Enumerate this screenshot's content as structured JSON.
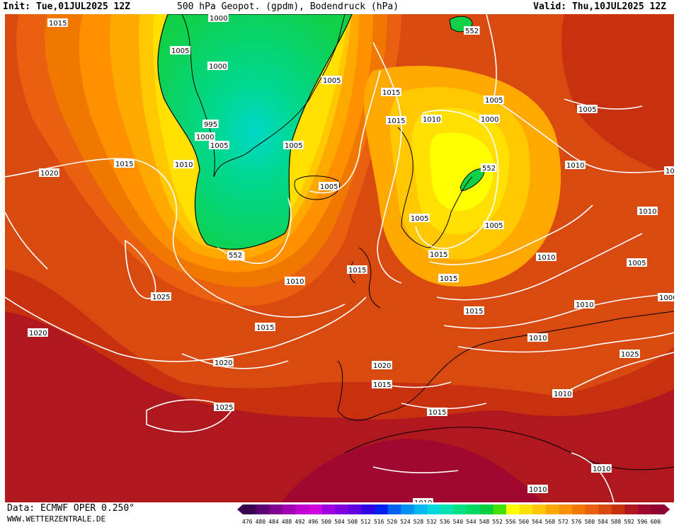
{
  "header": {
    "init": "Init: Tue,01JUL2025 12Z",
    "title": "500 hPa Geopot. (gpdm), Bodendruck (hPa)",
    "valid": "Valid: Thu,10JUL2025 12Z"
  },
  "footer": {
    "data_source": "Data: ECMWF OPER 0.250°",
    "website": "WWW.WETTERZENTRALE.DE"
  },
  "scale": {
    "values": [
      "476",
      "480",
      "484",
      "488",
      "492",
      "496",
      "500",
      "504",
      "508",
      "512",
      "516",
      "520",
      "524",
      "528",
      "532",
      "536",
      "540",
      "544",
      "548",
      "552",
      "556",
      "560",
      "564",
      "568",
      "572",
      "576",
      "580",
      "584",
      "588",
      "592",
      "596",
      "600"
    ],
    "colors": [
      "#3a0050",
      "#5a0070",
      "#800090",
      "#a000b0",
      "#c000d0",
      "#d000e0",
      "#a000e0",
      "#8000e0",
      "#6000e0",
      "#3000e0",
      "#0020f0",
      "#0060f0",
      "#0090f0",
      "#00b8f0",
      "#00d8e0",
      "#00e0b0",
      "#00e080",
      "#00d860",
      "#00d040",
      "#40e000",
      "#ffff00",
      "#ffe000",
      "#ffc800",
      "#ffa800",
      "#ff9000",
      "#f07800",
      "#e86010",
      "#d84a10",
      "#c83010",
      "#b01820",
      "#a00830",
      "#900030"
    ]
  },
  "isobar_labels": [
    "1015",
    "1005",
    "1000",
    "995",
    "1000",
    "1005",
    "1005",
    "1000",
    "1005",
    "1015",
    "1010",
    "1020",
    "1015",
    "1015",
    "1010",
    "1000",
    "552",
    "1005",
    "1005",
    "1005",
    "552",
    "1010",
    "1010",
    "1015",
    "1015",
    "1025",
    "1020",
    "1010",
    "1015",
    "1010",
    "1005",
    "1000",
    "1025",
    "1020",
    "1020",
    "1015",
    "1005",
    "1015",
    "1010",
    "1025",
    "1015",
    "1010",
    "1010",
    "1010",
    "1010",
    "1010",
    "552",
    "552",
    "1015",
    "1005",
    "1010"
  ],
  "colors": {
    "iso": "#ffffff",
    "coast": "#000000"
  }
}
